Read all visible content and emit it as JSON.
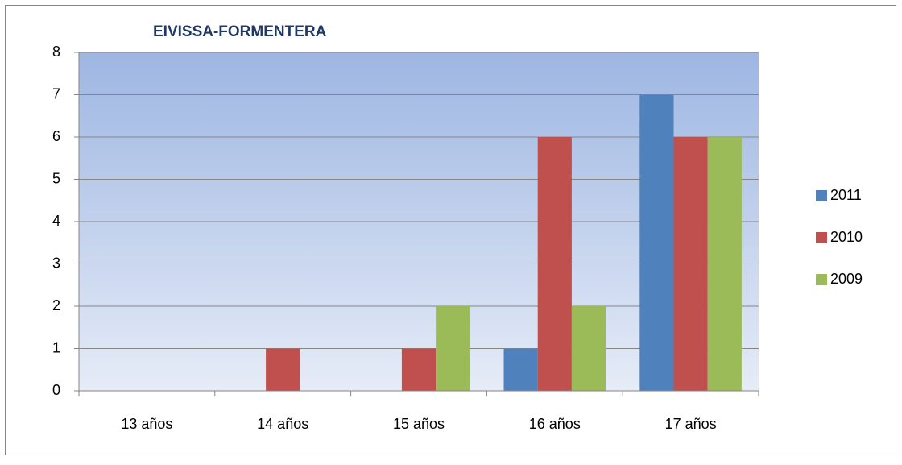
{
  "chart_data": {
    "type": "bar",
    "title": "EIVISSA-FORMENTERA",
    "categories": [
      "13 años",
      "14 años",
      "15 años",
      "16 años",
      "17 años"
    ],
    "series": [
      {
        "name": "2011",
        "color": "#4f81bd",
        "values": [
          0,
          0,
          0,
          1,
          7
        ]
      },
      {
        "name": "2010",
        "color": "#c0504d",
        "values": [
          0,
          1,
          1,
          6,
          6
        ]
      },
      {
        "name": "2009",
        "color": "#9bbb59",
        "values": [
          0,
          0,
          2,
          2,
          6
        ]
      }
    ],
    "ylim": [
      0,
      8
    ],
    "yticks": [
      0,
      1,
      2,
      3,
      4,
      5,
      6,
      7,
      8
    ],
    "grid": true,
    "legend": "right"
  }
}
